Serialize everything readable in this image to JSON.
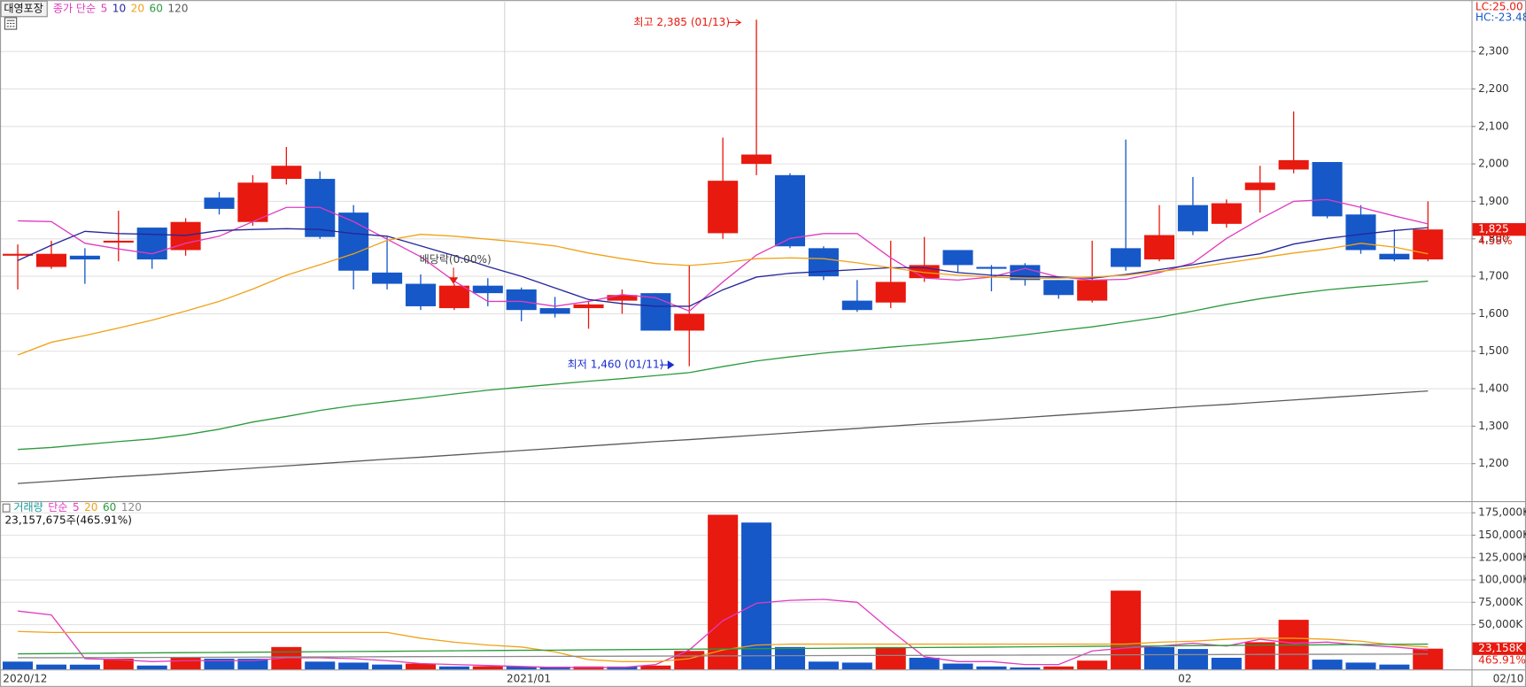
{
  "chart_data": [
    {
      "type": "candlestick",
      "title": "대영포장",
      "legend_prefix": "종가 단순",
      "categories": [
        "2020/12",
        null,
        null,
        null,
        null,
        null,
        null,
        null,
        null,
        null,
        null,
        null,
        null,
        null,
        null,
        "2021/01",
        null,
        null,
        null,
        null,
        null,
        null,
        null,
        null,
        null,
        null,
        null,
        null,
        null,
        null,
        null,
        null,
        null,
        null,
        null,
        "02",
        null,
        null,
        null,
        null,
        null,
        null,
        "02/10"
      ],
      "open": [
        1755,
        1725,
        1755,
        1790,
        1830,
        1770,
        1910,
        1845,
        1960,
        1960,
        1870,
        1710,
        1680,
        1615,
        1675,
        1665,
        1615,
        1615,
        1635,
        1655,
        1555,
        1815,
        2000,
        1970,
        1775,
        1635,
        1630,
        1695,
        1770,
        1725,
        1730,
        1690,
        1635,
        1775,
        1745,
        1890,
        1840,
        1930,
        1985,
        2005,
        1865,
        1760,
        1745
      ],
      "high": [
        1785,
        1795,
        1775,
        1875,
        1830,
        1855,
        1925,
        1970,
        2045,
        1980,
        1890,
        1805,
        1705,
        1680,
        1695,
        1670,
        1645,
        1635,
        1665,
        1655,
        1730,
        2070,
        2385,
        1975,
        1780,
        1690,
        1795,
        1805,
        1770,
        1730,
        1735,
        1690,
        1795,
        2065,
        1890,
        1965,
        1905,
        1995,
        2140,
        2005,
        1890,
        1825,
        1900
      ],
      "low": [
        1665,
        1720,
        1680,
        1740,
        1720,
        1755,
        1865,
        1835,
        1945,
        1800,
        1665,
        1665,
        1610,
        1610,
        1620,
        1580,
        1590,
        1560,
        1600,
        1555,
        1460,
        1800,
        1970,
        1775,
        1690,
        1605,
        1615,
        1685,
        1710,
        1660,
        1675,
        1640,
        1630,
        1715,
        1740,
        1810,
        1830,
        1870,
        1975,
        1855,
        1760,
        1740,
        1740
      ],
      "close": [
        1760,
        1760,
        1745,
        1795,
        1745,
        1845,
        1880,
        1950,
        1995,
        1805,
        1715,
        1680,
        1620,
        1675,
        1655,
        1610,
        1600,
        1625,
        1650,
        1555,
        1600,
        1955,
        2025,
        1780,
        1700,
        1610,
        1685,
        1730,
        1730,
        1720,
        1690,
        1650,
        1690,
        1725,
        1810,
        1820,
        1895,
        1950,
        2010,
        1860,
        1770,
        1745,
        1825
      ],
      "up_color": "#e8190f",
      "down_color": "#1658c8",
      "series": [
        {
          "name": "5",
          "color": "#e03cc0",
          "values": [
            1848,
            1846,
            1788,
            1773,
            1760,
            1788,
            1807,
            1846,
            1884,
            1884,
            1846,
            1799,
            1752,
            1687,
            1633,
            1633,
            1620,
            1633,
            1651,
            1643,
            1607,
            1685,
            1757,
            1801,
            1814,
            1814,
            1749,
            1695,
            1690,
            1698,
            1721,
            1698,
            1690,
            1692,
            1710,
            1736,
            1801,
            1853,
            1900,
            1905,
            1884,
            1861,
            1840
          ]
        },
        {
          "name": "10",
          "color": "#26279a",
          "values": [
            1742,
            1783,
            1820,
            1814,
            1812,
            1809,
            1822,
            1825,
            1827,
            1825,
            1814,
            1807,
            1781,
            1755,
            1726,
            1700,
            1669,
            1638,
            1627,
            1620,
            1620,
            1664,
            1698,
            1708,
            1713,
            1718,
            1723,
            1723,
            1710,
            1703,
            1700,
            1698,
            1695,
            1705,
            1718,
            1731,
            1747,
            1760,
            1786,
            1801,
            1812,
            1822,
            1830
          ]
        },
        {
          "name": "20",
          "color": "#f0a218",
          "values": [
            1490,
            1524,
            1542,
            1562,
            1583,
            1607,
            1633,
            1666,
            1703,
            1731,
            1760,
            1796,
            1812,
            1807,
            1799,
            1791,
            1781,
            1762,
            1747,
            1734,
            1729,
            1736,
            1747,
            1749,
            1747,
            1736,
            1723,
            1710,
            1703,
            1698,
            1695,
            1695,
            1698,
            1703,
            1713,
            1723,
            1736,
            1749,
            1762,
            1773,
            1788,
            1778,
            1760
          ]
        },
        {
          "name": "60",
          "color": "#2c9a3c",
          "values": [
            1238,
            1243,
            1251,
            1259,
            1266,
            1277,
            1292,
            1311,
            1326,
            1342,
            1355,
            1365,
            1375,
            1386,
            1396,
            1404,
            1412,
            1420,
            1427,
            1435,
            1443,
            1459,
            1474,
            1485,
            1495,
            1503,
            1511,
            1518,
            1526,
            1534,
            1544,
            1555,
            1565,
            1578,
            1591,
            1607,
            1625,
            1640,
            1653,
            1664,
            1672,
            1679,
            1687
          ]
        },
        {
          "name": "120",
          "color": "#5a5a5a",
          "values": [
            1147,
            1153,
            1159,
            1165,
            1170,
            1176,
            1182,
            1188,
            1194,
            1200,
            1206,
            1212,
            1217,
            1223,
            1229,
            1235,
            1241,
            1247,
            1253,
            1259,
            1264,
            1270,
            1276,
            1282,
            1288,
            1294,
            1300,
            1306,
            1311,
            1317,
            1323,
            1329,
            1335,
            1341,
            1347,
            1353,
            1358,
            1364,
            1370,
            1376,
            1382,
            1388,
            1394
          ]
        }
      ],
      "ylim": [
        1100,
        2432
      ],
      "yticks": [
        {
          "value": 1200,
          "label": "1,200"
        },
        {
          "value": 1300,
          "label": "1,300"
        },
        {
          "value": 1400,
          "label": "1,400"
        },
        {
          "value": 1500,
          "label": "1,500"
        },
        {
          "value": 1600,
          "label": "1,600"
        },
        {
          "value": 1700,
          "label": "1,700"
        },
        {
          "value": 1800,
          "label": "1,800"
        },
        {
          "value": 1900,
          "label": "1,900"
        },
        {
          "value": 2000,
          "label": "2,000"
        },
        {
          "value": 2100,
          "label": "2,100"
        },
        {
          "value": 2200,
          "label": "2,200"
        },
        {
          "value": 2300,
          "label": "2,300"
        }
      ],
      "grid": true,
      "last_close_label": "1,825",
      "last_change_label": "4.58%",
      "lc_label": "LC:25.00",
      "hc_label": "HC:-23.48",
      "annotations": [
        "최고 2,385 (01/13)",
        "최저 1,460 (01/11)",
        "배당락(0.00%)"
      ]
    },
    {
      "type": "bar",
      "title": "거래량",
      "legend_prefix": "단순",
      "subtitle": "23,157,675주(465.91%)",
      "values": [
        8700,
        5400,
        5300,
        12000,
        4300,
        13000,
        12000,
        11900,
        25000,
        8700,
        7600,
        5400,
        6500,
        3300,
        3500,
        3200,
        3100,
        3300,
        3200,
        4300,
        20600,
        172800,
        164100,
        25000,
        8700,
        7600,
        25000,
        13000,
        6500,
        3300,
        2200,
        3300,
        9800,
        88000,
        25000,
        22800,
        13000,
        30400,
        55400,
        10900,
        7600,
        5400,
        23158
      ],
      "up_color": "#e8190f",
      "down_color": "#1658c8",
      "series": [
        {
          "name": "5",
          "color": "#e03cc0",
          "values": [
            65200,
            60900,
            12000,
            10900,
            8700,
            9800,
            9800,
            9800,
            13000,
            13000,
            12000,
            9800,
            6500,
            5400,
            4300,
            3300,
            2200,
            2200,
            2200,
            5400,
            21700,
            54400,
            73900,
            77200,
            78300,
            75000,
            43500,
            14100,
            8700,
            8700,
            5400,
            5400,
            20700,
            23900,
            26100,
            29300,
            26100,
            33700,
            29300,
            30400,
            27200,
            25000,
            21700
          ]
        },
        {
          "name": "20",
          "color": "#f0a218",
          "values": [
            42400,
            41300,
            41300,
            41300,
            41300,
            41300,
            41300,
            41300,
            41300,
            41300,
            41300,
            41300,
            34800,
            30400,
            27200,
            25000,
            19600,
            10900,
            8700,
            8700,
            12000,
            21700,
            27200,
            28300,
            28300,
            28300,
            28300,
            28300,
            28300,
            28300,
            28300,
            28300,
            28300,
            28300,
            30400,
            31500,
            33700,
            34800,
            34800,
            33700,
            31500,
            27200,
            25000
          ]
        },
        {
          "name": "60",
          "color": "#2c9a3c",
          "values": [
            17400,
            17660,
            17920,
            18180,
            18440,
            18700,
            18960,
            19220,
            19480,
            19740,
            20000,
            20260,
            20520,
            20780,
            21040,
            21300,
            21560,
            21820,
            22080,
            22340,
            22600,
            22860,
            23120,
            23380,
            23640,
            23900,
            24160,
            24420,
            24680,
            24940,
            25200,
            25460,
            25720,
            25980,
            26240,
            26500,
            26760,
            27020,
            27280,
            27540,
            27800,
            28060,
            28320
          ]
        },
        {
          "name": "120",
          "color": "#8a8a8a",
          "values": [
            13000,
            13100,
            13200,
            13300,
            13400,
            13500,
            13600,
            13700,
            13800,
            13900,
            14000,
            14100,
            14200,
            14300,
            14400,
            14500,
            14600,
            14700,
            14800,
            14900,
            15000,
            15100,
            15200,
            15300,
            15400,
            15500,
            15600,
            15700,
            15800,
            15900,
            16000,
            16100,
            16200,
            16300,
            16400,
            16500,
            16600,
            16700,
            16800,
            16900,
            17000,
            17100,
            17200
          ]
        }
      ],
      "ylim": [
        0,
        187000
      ],
      "yticks": [
        {
          "value": 50000,
          "label": "50,000K"
        },
        {
          "value": 75000,
          "label": "75,000K"
        },
        {
          "value": 100000,
          "label": "100,000K"
        },
        {
          "value": 125000,
          "label": "125,000K"
        },
        {
          "value": 150000,
          "label": "150,000K"
        },
        {
          "value": 175000,
          "label": "175,000K"
        }
      ],
      "grid": true,
      "last_value_label": "23,158K",
      "last_change_label": "465.91%"
    }
  ]
}
